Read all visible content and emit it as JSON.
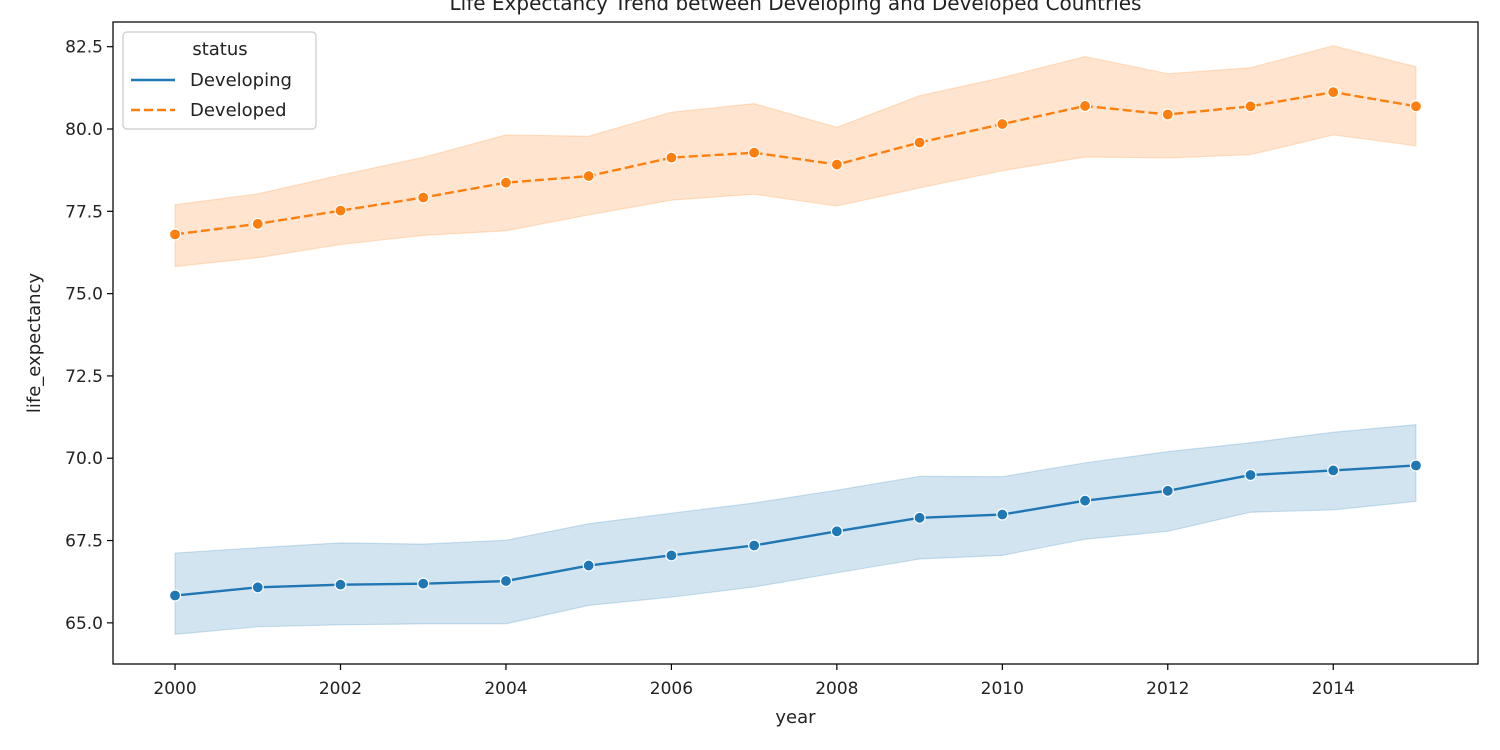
{
  "chart_data": {
    "type": "line",
    "title": "Life Expectancy Trend between Developing and Developed Countries",
    "xlabel": "year",
    "ylabel": "life_expectancy",
    "xlim": [
      1999.25,
      2015.75
    ],
    "ylim": [
      63.75,
      83.25
    ],
    "xticks": [
      2000,
      2002,
      2004,
      2006,
      2008,
      2010,
      2012,
      2014
    ],
    "xtick_labels": [
      "2000",
      "2002",
      "2004",
      "2006",
      "2008",
      "2010",
      "2012",
      "2014"
    ],
    "yticks": [
      65.0,
      67.5,
      70.0,
      72.5,
      75.0,
      77.5,
      80.0,
      82.5
    ],
    "ytick_labels": [
      "65.0",
      "67.5",
      "70.0",
      "72.5",
      "75.0",
      "77.5",
      "80.0",
      "82.5"
    ],
    "grid": false,
    "legend": {
      "title": "status",
      "position": "top-left"
    },
    "x": [
      2000,
      2001,
      2002,
      2003,
      2004,
      2005,
      2006,
      2007,
      2008,
      2009,
      2010,
      2011,
      2012,
      2013,
      2014,
      2015
    ],
    "series": [
      {
        "name": "Developing",
        "color": "#1f77b4",
        "line_style": "solid",
        "marker": "circle",
        "values": [
          65.83,
          66.08,
          66.16,
          66.19,
          66.27,
          66.74,
          67.05,
          67.35,
          67.78,
          68.19,
          68.29,
          68.71,
          69.01,
          69.49,
          69.63,
          69.78
        ],
        "ci_lower": [
          64.65,
          64.88,
          64.94,
          64.97,
          64.97,
          65.53,
          65.78,
          66.09,
          66.52,
          66.94,
          67.05,
          67.54,
          67.78,
          68.36,
          68.43,
          68.69
        ],
        "ci_upper": [
          67.12,
          67.28,
          67.43,
          67.39,
          67.51,
          68.01,
          68.33,
          68.64,
          69.03,
          69.45,
          69.44,
          69.86,
          70.2,
          70.47,
          70.79,
          71.02
        ]
      },
      {
        "name": "Developed",
        "color": "#ff7f0e",
        "line_style": "dashed",
        "marker": "circle",
        "values": [
          76.8,
          77.12,
          77.52,
          77.92,
          78.37,
          78.57,
          79.13,
          79.28,
          78.92,
          79.59,
          80.15,
          80.7,
          80.44,
          80.69,
          81.12,
          80.69
        ],
        "ci_lower": [
          75.82,
          76.09,
          76.49,
          76.77,
          76.91,
          77.39,
          77.84,
          78.02,
          77.66,
          78.21,
          78.73,
          79.15,
          79.12,
          79.22,
          79.82,
          79.49
        ],
        "ci_upper": [
          77.7,
          78.03,
          78.6,
          79.14,
          79.82,
          79.78,
          80.51,
          80.77,
          80.05,
          81.01,
          81.56,
          82.2,
          81.68,
          81.86,
          82.53,
          81.89
        ]
      }
    ]
  }
}
